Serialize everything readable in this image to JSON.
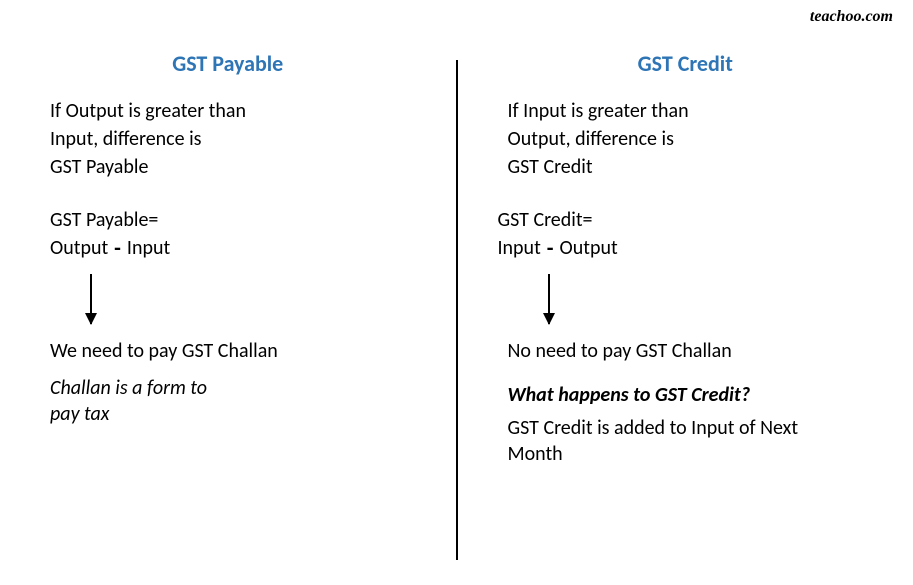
{
  "watermark": "teachoo.com",
  "colors": {
    "heading": "#2e75b6",
    "text": "#000000",
    "background": "#ffffff",
    "divider": "#000000"
  },
  "typography": {
    "heading_fontsize": 22,
    "body_fontsize": 20,
    "font_family": "Calibri"
  },
  "left": {
    "heading": "GST Payable",
    "condition_line1": "If Output is greater than",
    "condition_line2": "Input, difference is",
    "condition_line3": "GST Payable",
    "formula_label": "GST Payable=",
    "formula_term1": "Output",
    "formula_minus": "-",
    "formula_term2": "Input",
    "result": "We need to pay GST Challan",
    "note_line1": "Challan is a form to",
    "note_line2": "pay tax"
  },
  "right": {
    "heading": "GST Credit",
    "condition_line1": "If Input is greater than",
    "condition_line2": "Output, difference is",
    "condition_line3": "GST Credit",
    "formula_label": "GST Credit=",
    "formula_term1": "Input",
    "formula_minus": "-",
    "formula_term2": "Output",
    "result": "No need to pay GST Challan",
    "question": "What happens to GST Credit?",
    "answer_line1": "GST Credit is added to Input of Next",
    "answer_line2": "Month"
  }
}
